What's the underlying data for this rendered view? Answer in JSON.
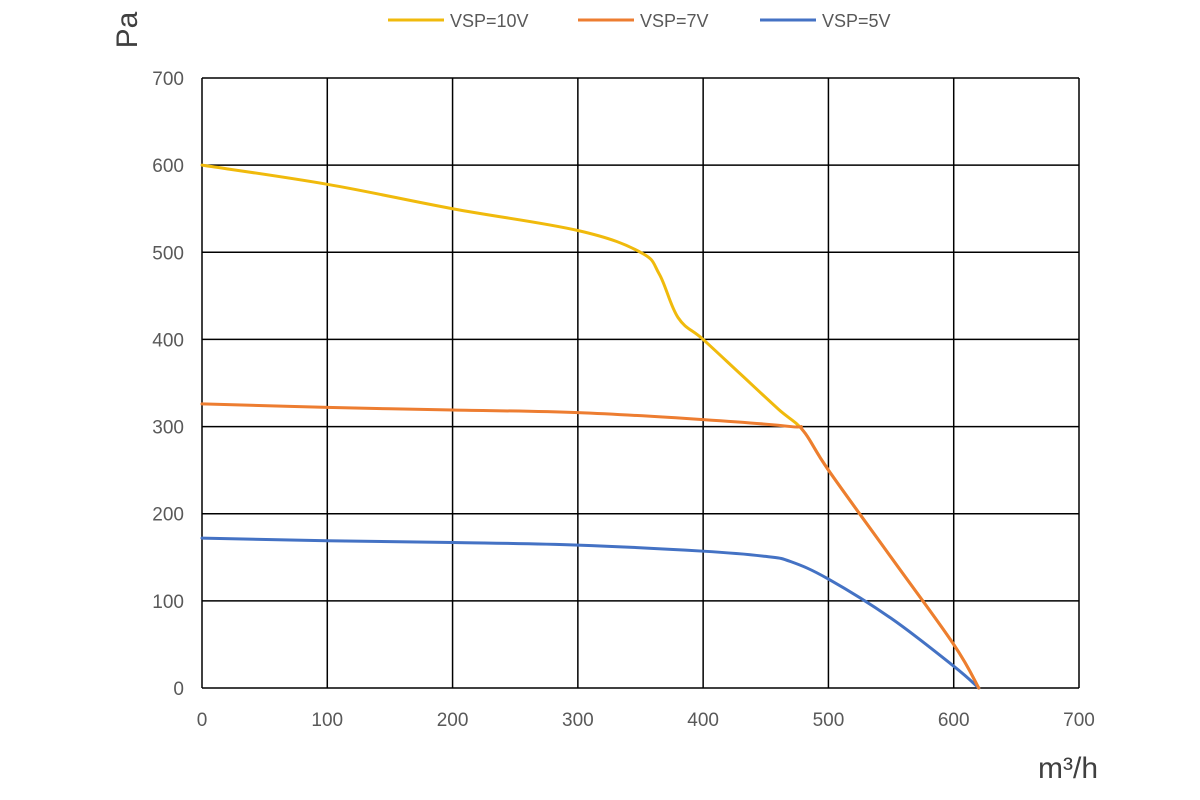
{
  "chart_data": {
    "type": "line",
    "xlabel": "m³/h",
    "ylabel": "Pa",
    "xlim": [
      0,
      700
    ],
    "ylim": [
      0,
      700
    ],
    "xticks": [
      0,
      100,
      200,
      300,
      400,
      500,
      600,
      700
    ],
    "yticks": [
      0,
      100,
      200,
      300,
      400,
      500,
      600,
      700
    ],
    "grid": true,
    "legend_position": "top",
    "series": [
      {
        "name": "VSP=10V",
        "color": "#F0BA0C",
        "x": [
          0,
          100,
          200,
          300,
          350,
          365,
          380,
          400,
          430,
          460,
          480,
          500,
          550,
          600,
          620
        ],
        "y": [
          600,
          578,
          550,
          525,
          500,
          475,
          425,
          400,
          360,
          320,
          295,
          250,
          150,
          50,
          0
        ]
      },
      {
        "name": "VSP=7V",
        "color": "#ED7D31",
        "x": [
          0,
          100,
          200,
          300,
          400,
          470,
          480,
          500,
          550,
          600,
          620
        ],
        "y": [
          326,
          322,
          319,
          316,
          308,
          300,
          295,
          250,
          150,
          50,
          0
        ]
      },
      {
        "name": "VSP=5V",
        "color": "#4472C4",
        "x": [
          0,
          100,
          200,
          300,
          400,
          450,
          470,
          500,
          550,
          600,
          620
        ],
        "y": [
          172,
          169,
          167,
          164,
          157,
          151,
          145,
          125,
          80,
          25,
          0
        ]
      }
    ]
  }
}
